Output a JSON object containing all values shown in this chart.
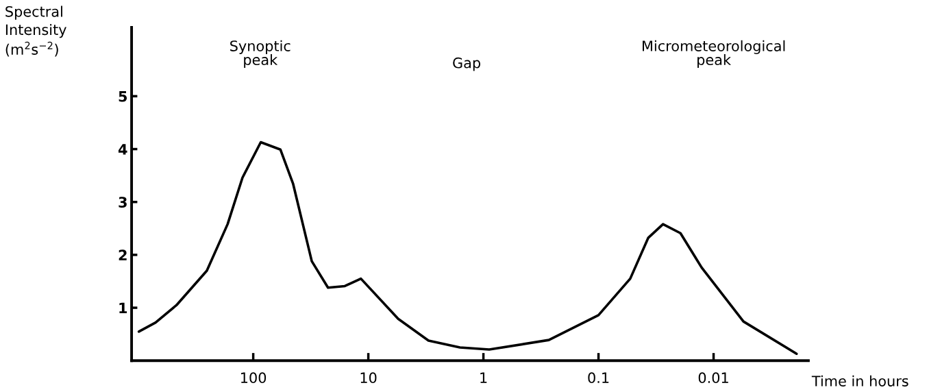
{
  "chart_data": {
    "type": "line",
    "ylabel": "Spectral\nIntensity\n(m$^{2}$s$^{−2}$)",
    "xlabel": "Time in hours",
    "x": [
      986,
      705,
      464,
      253,
      167,
      124,
      86,
      58,
      45,
      31,
      22.4,
      16,
      11.6,
      5.5,
      3.0,
      1.6,
      0.89,
      0.27,
      0.1,
      0.053,
      0.037,
      0.0275,
      0.0194,
      0.0127,
      0.0055,
      0.0019
    ],
    "series": [
      {
        "color": "#000000",
        "values": [
          0.55,
          0.72,
          1.05,
          1.7,
          2.58,
          3.46,
          4.13,
          3.99,
          3.34,
          1.88,
          1.38,
          1.41,
          1.55,
          0.79,
          0.38,
          0.25,
          0.21,
          0.39,
          0.86,
          1.55,
          2.32,
          2.58,
          2.41,
          1.76,
          0.74,
          0.13
        ]
      }
    ],
    "log": "x",
    "xlim": [
      1140,
      0.0015
    ],
    "ylim": [
      0,
      6.3
    ],
    "xticks": [
      100,
      10,
      1,
      0.1,
      0.01
    ],
    "yticks": [
      1,
      2,
      3,
      4,
      5
    ],
    "annotations": [
      "Synoptic\npeak",
      "Gap",
      "Micrometeorological\npeak"
    ],
    "marker": "none",
    "line_style": "solid"
  }
}
